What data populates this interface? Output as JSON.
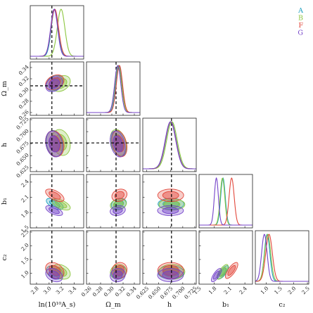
{
  "chart_data": {
    "type": "corner",
    "parameters": [
      {
        "label": "ln(10¹⁰A_s)",
        "range": [
          2.7,
          3.55
        ],
        "ticks": [
          2.8,
          3.0,
          3.2,
          3.4
        ],
        "tick_labels": [
          "2.8",
          "3.0",
          "3.2",
          "3.4"
        ],
        "truth": 3.044
      },
      {
        "label": "Ω_m",
        "range": [
          0.255,
          0.35
        ],
        "ticks": [
          0.26,
          0.28,
          0.3,
          0.32,
          0.34
        ],
        "tick_labels": [
          "0.26",
          "0.28",
          "0.30",
          "0.32",
          "0.34"
        ],
        "truth": 0.3075
      },
      {
        "label": "h",
        "range": [
          0.617,
          0.728
        ],
        "ticks": [
          0.625,
          0.65,
          0.675,
          0.7,
          0.725
        ],
        "tick_labels": [
          "0.625",
          "0.650",
          "0.675",
          "0.700",
          "0.725"
        ],
        "truth": 0.6766
      },
      {
        "label": "b₁",
        "range": [
          1.5,
          2.55
        ],
        "ticks": [
          1.5,
          1.8,
          2.1,
          2.4
        ],
        "tick_labels": [
          "1.5",
          "1.8",
          "2.1",
          "2.4"
        ],
        "truth": null
      },
      {
        "label": "c₂",
        "range": [
          0.6,
          2.55
        ],
        "ticks": [
          1.0,
          1.5,
          2.0,
          2.5
        ],
        "tick_labels": [
          "1.0",
          "1.5",
          "2.0",
          "2.5"
        ],
        "truth": null
      }
    ],
    "series": [
      {
        "name": "A",
        "color": "#1f9fbf",
        "mean": [
          3.09,
          0.3125,
          0.6755,
          1.97,
          1.03
        ],
        "sigma": [
          0.055,
          0.0055,
          0.011,
          0.045,
          0.1
        ],
        "corr": {
          "0-1": 0.3,
          "0-2": -0.2,
          "0-3": -0.6,
          "0-4": -0.3,
          "1-2": -0.3,
          "1-3": 0.2,
          "1-4": 0.1,
          "2-3": 0.0,
          "2-4": 0.0,
          "3-4": 0.75
        }
      },
      {
        "name": "B",
        "color": "#8cc63f",
        "mean": [
          3.19,
          0.3115,
          0.6775,
          1.96,
          1.05
        ],
        "sigma": [
          0.06,
          0.0058,
          0.011,
          0.045,
          0.11
        ],
        "corr": {
          "0-1": 0.3,
          "0-2": -0.2,
          "0-3": -0.6,
          "0-4": -0.3,
          "1-2": -0.3,
          "1-3": 0.2,
          "1-4": 0.1,
          "2-3": 0.0,
          "2-4": 0.0,
          "3-4": 0.75
        }
      },
      {
        "name": "F",
        "color": "#e2473b",
        "mean": [
          3.09,
          0.3135,
          0.675,
          2.14,
          1.1
        ],
        "sigma": [
          0.06,
          0.0055,
          0.011,
          0.05,
          0.12
        ],
        "corr": {
          "0-1": 0.3,
          "0-2": -0.2,
          "0-3": -0.6,
          "0-4": -0.3,
          "1-2": -0.3,
          "1-3": 0.2,
          "1-4": 0.1,
          "2-3": 0.0,
          "2-4": 0.0,
          "3-4": 0.75
        }
      },
      {
        "name": "G",
        "color": "#7443c9",
        "mean": [
          3.08,
          0.3105,
          0.6745,
          1.84,
          0.93
        ],
        "sigma": [
          0.055,
          0.0055,
          0.011,
          0.04,
          0.1
        ],
        "corr": {
          "0-1": 0.3,
          "0-2": -0.2,
          "0-3": -0.6,
          "0-4": -0.3,
          "1-2": -0.3,
          "1-3": 0.2,
          "1-4": 0.1,
          "2-3": 0.0,
          "2-4": 0.0,
          "3-4": 0.75
        }
      }
    ],
    "legend": {
      "position": "top-right",
      "entries": [
        "A",
        "B",
        "F",
        "G"
      ]
    },
    "grid": false,
    "truth_lines": "dashed black"
  }
}
